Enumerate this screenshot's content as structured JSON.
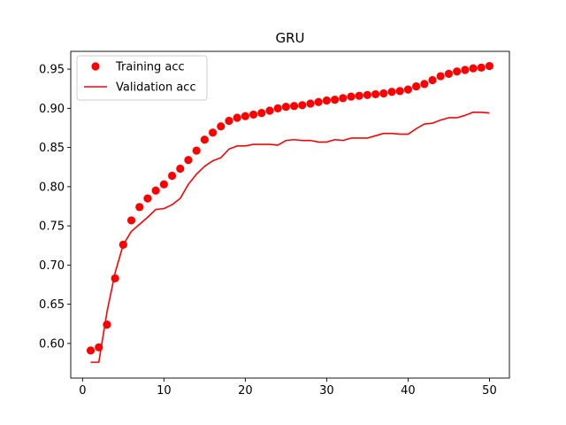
{
  "chart_data": {
    "type": "line",
    "title": "GRU",
    "xlabel": "",
    "ylabel": "",
    "xlim": [
      -1.45,
      52.45
    ],
    "ylim": [
      0.5558,
      0.9727
    ],
    "xticks": [
      0,
      10,
      20,
      30,
      40,
      50
    ],
    "yticks": [
      0.6,
      0.65,
      0.7,
      0.75,
      0.8,
      0.85,
      0.9,
      0.95
    ],
    "ytick_labels": [
      "0.60",
      "0.65",
      "0.70",
      "0.75",
      "0.80",
      "0.85",
      "0.90",
      "0.95"
    ],
    "legend_position": "upper-left",
    "grid": false,
    "series": [
      {
        "name": "Training acc",
        "style": "markers",
        "color": "#ff0000",
        "x": [
          1,
          2,
          3,
          4,
          5,
          6,
          7,
          8,
          9,
          10,
          11,
          12,
          13,
          14,
          15,
          16,
          17,
          18,
          19,
          20,
          21,
          22,
          23,
          24,
          25,
          26,
          27,
          28,
          29,
          30,
          31,
          32,
          33,
          34,
          35,
          36,
          37,
          38,
          39,
          40,
          41,
          42,
          43,
          44,
          45,
          46,
          47,
          48,
          49,
          50
        ],
        "y": [
          0.591,
          0.595,
          0.624,
          0.683,
          0.726,
          0.757,
          0.774,
          0.785,
          0.795,
          0.803,
          0.814,
          0.823,
          0.834,
          0.846,
          0.86,
          0.869,
          0.877,
          0.884,
          0.888,
          0.89,
          0.892,
          0.894,
          0.897,
          0.9,
          0.902,
          0.903,
          0.904,
          0.906,
          0.908,
          0.91,
          0.911,
          0.913,
          0.915,
          0.916,
          0.917,
          0.918,
          0.919,
          0.921,
          0.922,
          0.924,
          0.928,
          0.931,
          0.936,
          0.941,
          0.944,
          0.947,
          0.949,
          0.951,
          0.952,
          0.954
        ]
      },
      {
        "name": "Validation acc",
        "style": "line",
        "color": "#ff0000",
        "x": [
          1,
          2,
          3,
          4,
          5,
          6,
          7,
          8,
          9,
          10,
          11,
          12,
          13,
          14,
          15,
          16,
          17,
          18,
          19,
          20,
          21,
          22,
          23,
          24,
          25,
          26,
          27,
          28,
          29,
          30,
          31,
          32,
          33,
          34,
          35,
          36,
          37,
          38,
          39,
          40,
          41,
          42,
          43,
          44,
          45,
          46,
          47,
          48,
          49,
          50
        ],
        "y": [
          0.576,
          0.576,
          0.64,
          0.69,
          0.726,
          0.743,
          0.752,
          0.761,
          0.771,
          0.772,
          0.777,
          0.785,
          0.803,
          0.816,
          0.826,
          0.833,
          0.837,
          0.848,
          0.852,
          0.852,
          0.854,
          0.854,
          0.854,
          0.853,
          0.859,
          0.86,
          0.859,
          0.859,
          0.857,
          0.857,
          0.86,
          0.859,
          0.862,
          0.862,
          0.862,
          0.865,
          0.868,
          0.868,
          0.867,
          0.867,
          0.874,
          0.88,
          0.881,
          0.885,
          0.888,
          0.888,
          0.891,
          0.895,
          0.895,
          0.894
        ]
      }
    ]
  }
}
